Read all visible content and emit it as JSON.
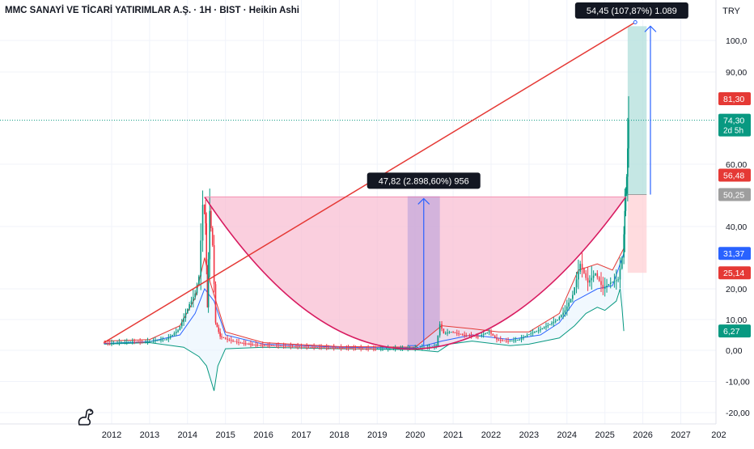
{
  "header": {
    "symbol_title": "MMC SANAYİ VE TİCARİ YATIRIMLAR A.Ş. · 1H · BIST · Heikin Ashi",
    "currency": "TRY"
  },
  "chart_data": {
    "type": "line",
    "x_axis_labels": [
      "2012",
      "2013",
      "2014",
      "2015",
      "2016",
      "2017",
      "2018",
      "2019",
      "2020",
      "2021",
      "2022",
      "2023",
      "2024",
      "2025",
      "2026",
      "2027",
      "202"
    ],
    "y_axis_labels": [
      "100,0",
      "90,00",
      "60,00",
      "40,00",
      "20,00",
      "10,00",
      "0,00",
      "-10,00",
      "-20,00"
    ],
    "ylim": [
      -20,
      108
    ],
    "price_badges": [
      {
        "label": "81,30",
        "value": 81.3,
        "color": "#e53935"
      },
      {
        "label": "74,30",
        "sub": "2d 5h",
        "value": 74.3,
        "color": "#089981"
      },
      {
        "label": "56,48",
        "value": 56.48,
        "color": "#e53935"
      },
      {
        "label": "50,25",
        "value": 50.25,
        "color": "#9e9e9e"
      },
      {
        "label": "31,37",
        "value": 31.37,
        "color": "#2962ff"
      },
      {
        "label": "25,14",
        "value": 25.14,
        "color": "#e53935"
      },
      {
        "label": "6,27",
        "value": 6.27,
        "color": "#089981"
      }
    ],
    "current_price": 74.3,
    "trend_line": {
      "start": [
        2011.8,
        2.5
      ],
      "end": [
        2025.8,
        106
      ],
      "color": "#e53935"
    },
    "cup_arc": {
      "left": [
        2014.45,
        49.5
      ],
      "bottom": [
        2019.8,
        0.4
      ],
      "right": [
        2025.55,
        49.5
      ],
      "color": "#e91e63"
    },
    "measure_annotations": [
      {
        "label": "47,82 (2.898,60%) 956",
        "x_from": 2019.8,
        "x_to": 2020.65,
        "y_from": 1.5,
        "y_to": 49.5
      },
      {
        "label": "54,45 (107,87%) 1.089",
        "x": 2026.2,
        "y_from": 50.25,
        "y_to": 104.7
      }
    ],
    "position_tool": {
      "entry": 50.25,
      "target": 104.7,
      "stop": 25.14,
      "x_from": 2025.6,
      "x_to": 2026.1
    },
    "price_series": [
      [
        2011.8,
        2.5
      ],
      [
        2012.0,
        2.3
      ],
      [
        2012.3,
        2.6
      ],
      [
        2012.6,
        2.8
      ],
      [
        2012.9,
        2.7
      ],
      [
        2013.2,
        3.2
      ],
      [
        2013.5,
        3.6
      ],
      [
        2013.8,
        6.5
      ],
      [
        2013.95,
        10.5
      ],
      [
        2014.1,
        15
      ],
      [
        2014.25,
        18.5
      ],
      [
        2014.35,
        24
      ],
      [
        2014.45,
        47
      ],
      [
        2014.5,
        41
      ],
      [
        2014.55,
        14
      ],
      [
        2014.62,
        45
      ],
      [
        2014.7,
        34
      ],
      [
        2014.78,
        9
      ],
      [
        2014.9,
        4.5
      ],
      [
        2015.1,
        3.5
      ],
      [
        2015.4,
        2.5
      ],
      [
        2015.8,
        1.8
      ],
      [
        2016.3,
        1.5
      ],
      [
        2017,
        1.2
      ],
      [
        2018,
        0.8
      ],
      [
        2019,
        0.5
      ],
      [
        2020,
        0.6
      ],
      [
        2020.6,
        1.2
      ],
      [
        2020.7,
        8.5
      ],
      [
        2020.8,
        5.5
      ],
      [
        2021.0,
        6
      ],
      [
        2021.3,
        5
      ],
      [
        2021.7,
        4.5
      ],
      [
        2022.0,
        6
      ],
      [
        2022.2,
        3.5
      ],
      [
        2022.5,
        3
      ],
      [
        2022.8,
        3.5
      ],
      [
        2023.0,
        5
      ],
      [
        2023.3,
        6.5
      ],
      [
        2023.6,
        8.5
      ],
      [
        2023.8,
        10
      ],
      [
        2024.0,
        13
      ],
      [
        2024.2,
        18
      ],
      [
        2024.4,
        28
      ],
      [
        2024.6,
        22
      ],
      [
        2024.8,
        25
      ],
      [
        2025.0,
        20
      ],
      [
        2025.2,
        22
      ],
      [
        2025.4,
        23
      ],
      [
        2025.5,
        30
      ],
      [
        2025.55,
        45
      ],
      [
        2025.6,
        56
      ],
      [
        2025.65,
        74.3
      ]
    ],
    "band_upper": [
      [
        2011.8,
        3
      ],
      [
        2013,
        3.5
      ],
      [
        2013.8,
        8
      ],
      [
        2014.2,
        17
      ],
      [
        2014.45,
        30
      ],
      [
        2014.6,
        22
      ],
      [
        2014.8,
        14
      ],
      [
        2015.0,
        6
      ],
      [
        2016,
        2.5
      ],
      [
        2018,
        1.2
      ],
      [
        2020,
        1
      ],
      [
        2020.7,
        8
      ],
      [
        2021.5,
        7
      ],
      [
        2022.2,
        6
      ],
      [
        2023,
        6
      ],
      [
        2023.8,
        12
      ],
      [
        2024.3,
        26
      ],
      [
        2024.8,
        28
      ],
      [
        2025.2,
        26
      ],
      [
        2025.5,
        33
      ]
    ],
    "band_lower": [
      [
        2011.8,
        2
      ],
      [
        2013,
        2.5
      ],
      [
        2013.9,
        1
      ],
      [
        2014.3,
        -2
      ],
      [
        2014.5,
        -5
      ],
      [
        2014.7,
        -13
      ],
      [
        2014.8,
        -5
      ],
      [
        2015.0,
        0.5
      ],
      [
        2016,
        1
      ],
      [
        2018,
        0.5
      ],
      [
        2020,
        0.2
      ],
      [
        2020.6,
        -0.5
      ],
      [
        2020.9,
        2
      ],
      [
        2021.5,
        3
      ],
      [
        2022.5,
        1.5
      ],
      [
        2023.0,
        2
      ],
      [
        2023.8,
        4
      ],
      [
        2024.2,
        8
      ],
      [
        2024.5,
        12
      ],
      [
        2024.8,
        14
      ],
      [
        2025.0,
        13
      ],
      [
        2025.3,
        16
      ],
      [
        2025.4,
        20
      ],
      [
        2025.45,
        14
      ],
      [
        2025.5,
        6.27
      ]
    ],
    "moving_average": [
      [
        2011.8,
        2.2
      ],
      [
        2013,
        2.8
      ],
      [
        2013.8,
        5
      ],
      [
        2014.2,
        12
      ],
      [
        2014.45,
        20
      ],
      [
        2014.7,
        16
      ],
      [
        2015.0,
        5
      ],
      [
        2016,
        2
      ],
      [
        2018,
        1
      ],
      [
        2020,
        0.7
      ],
      [
        2020.7,
        3
      ],
      [
        2021.5,
        5
      ],
      [
        2022.5,
        3.5
      ],
      [
        2023.3,
        5
      ],
      [
        2023.8,
        9
      ],
      [
        2024.2,
        16
      ],
      [
        2024.8,
        20
      ],
      [
        2025.2,
        21
      ],
      [
        2025.5,
        31.37
      ]
    ]
  }
}
